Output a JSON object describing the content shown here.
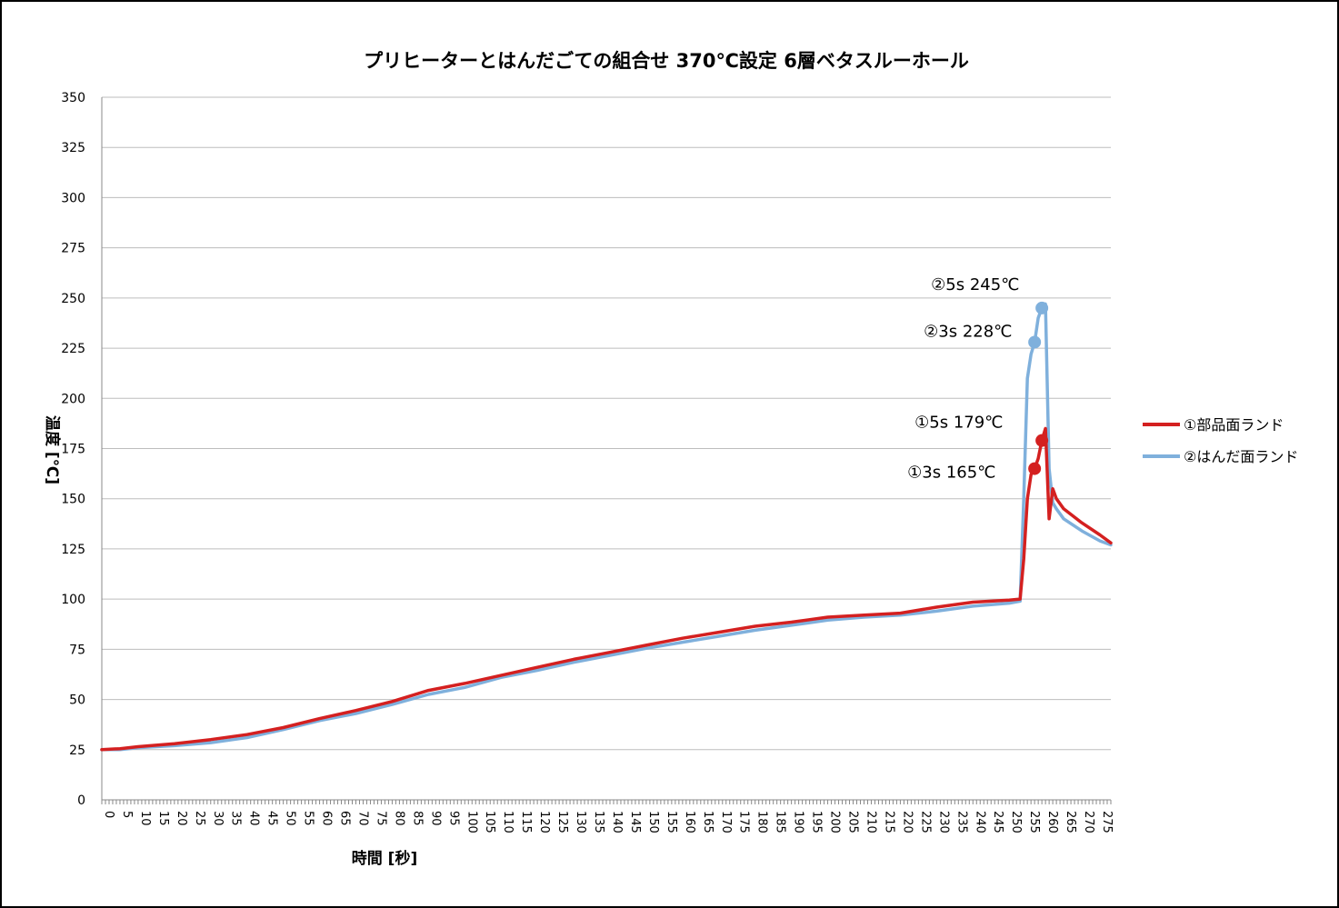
{
  "chart_data": {
    "type": "line",
    "title": "プリヒーターとはんだごての組合せ 370℃設定 6層ベタスルーホール",
    "xlabel": "時間 [秒]",
    "ylabel": "温度 [℃]",
    "ylim": [
      0,
      350
    ],
    "yticks": [
      0,
      25,
      50,
      75,
      100,
      125,
      150,
      175,
      200,
      225,
      250,
      275,
      300,
      325,
      350
    ],
    "xlim": [
      0,
      278
    ],
    "xtick_labels": [
      "0",
      "5",
      "10",
      "15",
      "20",
      "25",
      "30",
      "35",
      "40",
      "45",
      "50",
      "55",
      "60",
      "65",
      "70",
      "75",
      "80",
      "85",
      "90",
      "95",
      "100",
      "105",
      "110",
      "115",
      "120",
      "125",
      "130",
      "135",
      "140",
      "145",
      "150",
      "155",
      "160",
      "165",
      "170",
      "175",
      "180",
      "185",
      "190",
      "195",
      "200",
      "205",
      "210",
      "215",
      "220",
      "225",
      "230",
      "235",
      "240",
      "245",
      "250",
      "255",
      "260",
      "265",
      "270",
      "275"
    ],
    "grid": "horizontal",
    "legend_position": "right",
    "series": [
      {
        "name": "①部品面ランド",
        "color": "#d42020",
        "x": [
          0,
          5,
          10,
          20,
          30,
          40,
          50,
          60,
          70,
          80,
          90,
          100,
          110,
          120,
          130,
          140,
          150,
          160,
          170,
          180,
          190,
          200,
          210,
          220,
          230,
          240,
          250,
          253,
          254,
          255,
          256,
          257,
          258,
          259,
          260,
          261,
          262,
          263,
          265,
          270,
          275,
          278
        ],
        "y": [
          25,
          25.5,
          26.5,
          28,
          30,
          32.5,
          36,
          40.5,
          44.5,
          49,
          54.5,
          58,
          62,
          66,
          70,
          73.5,
          77,
          80.5,
          83.5,
          86.5,
          88.5,
          91,
          92,
          93,
          96,
          98.5,
          99.5,
          100,
          120,
          150,
          162,
          165,
          170,
          179,
          185,
          140,
          155,
          150,
          145,
          138,
          132,
          128
        ]
      },
      {
        "name": "②はんだ面ランド",
        "color": "#7fb0dc",
        "x": [
          0,
          5,
          10,
          20,
          30,
          40,
          50,
          60,
          70,
          80,
          90,
          100,
          110,
          120,
          130,
          140,
          150,
          160,
          170,
          180,
          190,
          200,
          210,
          220,
          230,
          240,
          250,
          253,
          254,
          255,
          256,
          257,
          258,
          259,
          260,
          261,
          262,
          263,
          265,
          270,
          275,
          278
        ],
        "y": [
          25,
          25,
          26,
          27,
          28.5,
          31,
          35,
          39.5,
          43,
          47.5,
          52.5,
          56,
          61,
          64.5,
          68.5,
          72,
          75.5,
          78.5,
          81.5,
          84.5,
          87,
          89.5,
          91,
          92,
          94,
          96.5,
          98,
          99,
          150,
          210,
          222,
          228,
          240,
          245,
          247,
          165,
          148,
          145,
          140,
          134,
          129,
          127
        ]
      }
    ],
    "annotations": [
      {
        "text": "②5s 245℃",
        "x": 259,
        "y": 245,
        "series": 1
      },
      {
        "text": "②3s 228℃",
        "x": 257,
        "y": 228,
        "series": 1
      },
      {
        "text": "①5s 179℃",
        "x": 259,
        "y": 179,
        "series": 0
      },
      {
        "text": "①3s 165℃",
        "x": 257,
        "y": 165,
        "series": 0
      }
    ]
  }
}
